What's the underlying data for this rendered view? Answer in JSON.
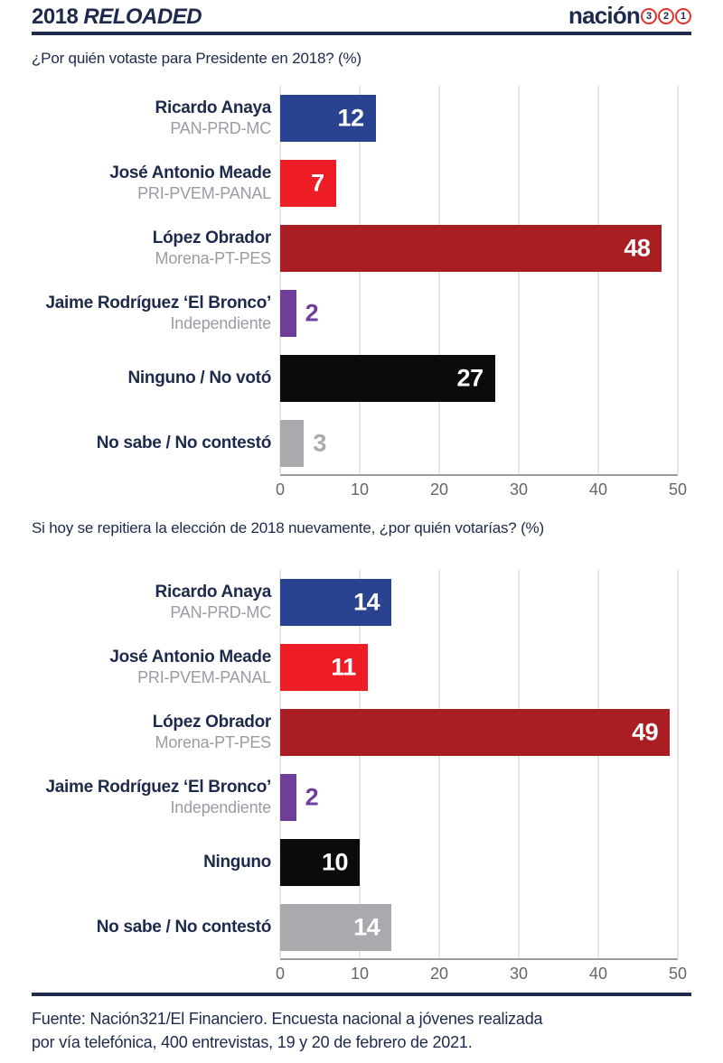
{
  "header": {
    "brand_year": "2018",
    "brand_word": "RELOADED",
    "logo_word": "nación",
    "logo_digits": [
      "3",
      "2",
      "1"
    ]
  },
  "colors": {
    "navy": "#1d2a4c",
    "logo_ring_red": "#e63329",
    "party_gray": "#9b9ba3",
    "tick_gray": "#66666e",
    "axis_line": "#9b9b9b",
    "gridline": "#e7e7e9",
    "bar_blue": "#2a4391",
    "bar_red": "#ee1c25",
    "bar_darkred": "#a81e22",
    "bar_purple": "#6f3f97",
    "bar_black": "#0b0b0b",
    "bar_gray": "#aaaaae"
  },
  "chart_data": [
    {
      "type": "bar",
      "orientation": "horizontal",
      "title": "¿Por quién votaste para Presidente en 2018? (%)",
      "xlim": [
        0,
        50
      ],
      "x_ticks": [
        0,
        10,
        20,
        30,
        40,
        50
      ],
      "grid": true,
      "categories": [
        {
          "name": "Ricardo Anaya",
          "party": "PAN-PRD-MC",
          "value": 12,
          "color": "#2a4391",
          "label_inside": true
        },
        {
          "name": "José Antonio Meade",
          "party": "PRI-PVEM-PANAL",
          "value": 7,
          "color": "#ee1c25",
          "label_inside": true
        },
        {
          "name": "López Obrador",
          "party": "Morena-PT-PES",
          "value": 48,
          "color": "#a81e22",
          "label_inside": true
        },
        {
          "name": "Jaime Rodríguez ‘El Bronco’",
          "party": "Independiente",
          "value": 2,
          "color": "#6f3f97",
          "label_inside": false
        },
        {
          "name": "Ninguno / No votó",
          "party": "",
          "value": 27,
          "color": "#0b0b0b",
          "label_inside": true
        },
        {
          "name": "No sabe / No contestó",
          "party": "",
          "value": 3,
          "color": "#aaaaae",
          "label_inside": false
        }
      ]
    },
    {
      "type": "bar",
      "orientation": "horizontal",
      "title": "Si hoy se repitiera la elección de 2018 nuevamente, ¿por quién votarías? (%)",
      "xlim": [
        0,
        50
      ],
      "x_ticks": [
        0,
        10,
        20,
        30,
        40,
        50
      ],
      "grid": true,
      "categories": [
        {
          "name": "Ricardo Anaya",
          "party": "PAN-PRD-MC",
          "value": 14,
          "color": "#2a4391",
          "label_inside": true
        },
        {
          "name": "José Antonio Meade",
          "party": "PRI-PVEM-PANAL",
          "value": 11,
          "color": "#ee1c25",
          "label_inside": true
        },
        {
          "name": "López Obrador",
          "party": "Morena-PT-PES",
          "value": 49,
          "color": "#a81e22",
          "label_inside": true
        },
        {
          "name": "Jaime Rodríguez ‘El Bronco’",
          "party": "Independiente",
          "value": 2,
          "color": "#6f3f97",
          "label_inside": false
        },
        {
          "name": "Ninguno",
          "party": "",
          "value": 10,
          "color": "#0b0b0b",
          "label_inside": true
        },
        {
          "name": "No sabe / No contestó",
          "party": "",
          "value": 14,
          "color": "#aaaaae",
          "label_inside": true
        }
      ]
    }
  ],
  "footer": {
    "lines": [
      "Fuente: Nación321/El Financiero. Encuesta nacional a jóvenes realizada",
      "por vía telefónica, 400 entrevistas, 19 y 20 de febrero de 2021."
    ]
  }
}
